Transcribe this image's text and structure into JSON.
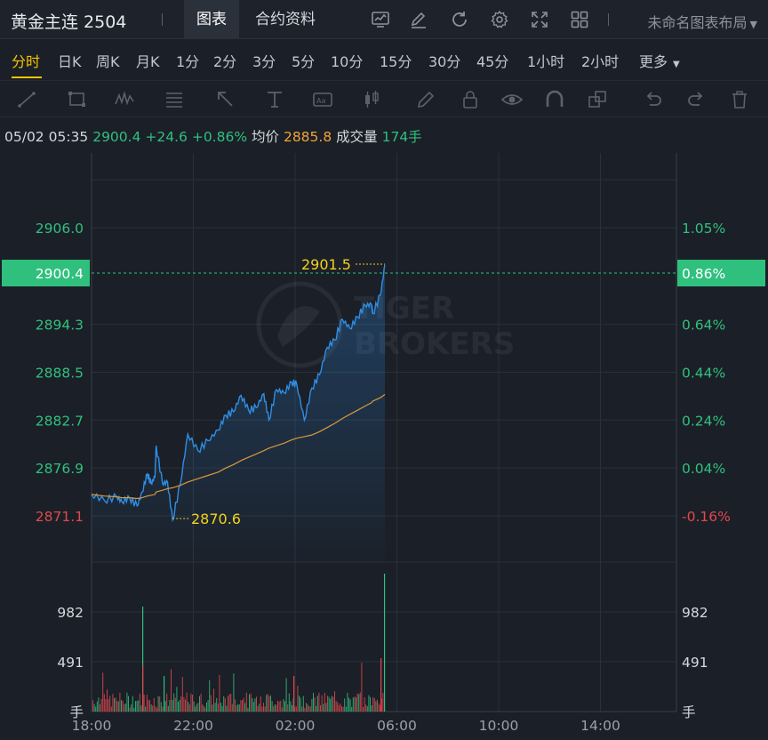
{
  "header": {
    "symbol": "黄金主连 2504",
    "tabs": [
      "图表",
      "合约资料"
    ],
    "layout_name": "未命名图表布局"
  },
  "intervals": [
    "分时",
    "日K",
    "周K",
    "月K",
    "1分",
    "2分",
    "3分",
    "5分",
    "10分",
    "15分",
    "30分",
    "45分",
    "1小时",
    "2小时",
    "更多"
  ],
  "active_interval": "分时",
  "info": {
    "datetime": "05/02 05:35",
    "price": "2900.4",
    "change": "+24.6",
    "change_pct": "+0.86%",
    "avg_label": "均价",
    "avg_price": "2885.8",
    "volume_label": "成交量",
    "volume": "174手"
  },
  "colors": {
    "up": "#2fc07e",
    "down": "#e0494f",
    "avg": "#d99a3a",
    "price_line": "#2f8ee6",
    "marker": "#f2d21b"
  },
  "watermark": [
    "TIGER",
    "BROKERS"
  ],
  "chart_data": {
    "type": "line",
    "price_axis": {
      "ticks": [
        "2906.0",
        "2894.3",
        "2888.5",
        "2882.7",
        "2876.9",
        "2871.1"
      ],
      "values": [
        2906.0,
        2894.3,
        2888.5,
        2882.7,
        2876.9,
        2871.1
      ],
      "pct_ticks": [
        "1.05%",
        "0.64%",
        "0.44%",
        "0.24%",
        "0.04%",
        "-0.16%"
      ]
    },
    "current_price_label": "2900.4",
    "current_pct_label": "0.86%",
    "high_marker": "2901.5",
    "low_marker": "2870.6",
    "volume_axis": {
      "ticks": [
        "982",
        "491"
      ],
      "unit": "手"
    },
    "time_ticks": [
      "18:00",
      "22:00",
      "02:00",
      "06:00",
      "10:00",
      "14:00"
    ],
    "x_hours_from_1800": [
      0,
      0.5,
      1,
      1.2,
      1.5,
      1.8,
      2.0,
      2.2,
      2.35,
      2.5,
      2.55,
      2.8,
      3.0,
      3.2,
      3.5,
      3.8,
      4.2,
      4.6,
      5.0,
      5.3,
      5.6,
      5.9,
      6.2,
      6.5,
      6.8,
      7.0,
      7.3,
      7.6,
      7.9,
      8.1,
      8.4,
      8.7,
      9.0,
      9.3,
      9.6,
      9.9,
      10.2,
      10.5,
      10.8,
      11.05,
      11.1,
      11.4,
      11.58
    ],
    "price_series": [
      2873.7,
      2873.0,
      2873.4,
      2872.8,
      2873.3,
      2872.3,
      2874.0,
      2876.2,
      2875.0,
      2875.8,
      2879.6,
      2875.0,
      2875.2,
      2870.6,
      2874.9,
      2881.0,
      2879.0,
      2880.2,
      2881.5,
      2883.3,
      2883.7,
      2885.7,
      2883.9,
      2884.2,
      2885.9,
      2882.7,
      2886.4,
      2886.0,
      2887.3,
      2887.0,
      2882.7,
      2886.6,
      2888.2,
      2891.5,
      2892.4,
      2894.9,
      2893.8,
      2895.2,
      2896.6,
      2896.7,
      2895.6,
      2897.8,
      2901.5
    ],
    "avg_series": [
      2873.7,
      2873.5,
      2873.4,
      2873.3,
      2873.3,
      2873.2,
      2873.3,
      2873.5,
      2873.6,
      2873.7,
      2874.0,
      2874.2,
      2874.4,
      2874.5,
      2874.8,
      2875.2,
      2875.6,
      2876.0,
      2876.4,
      2876.9,
      2877.3,
      2877.8,
      2878.2,
      2878.6,
      2879.0,
      2879.3,
      2879.6,
      2879.9,
      2880.3,
      2880.5,
      2880.7,
      2880.9,
      2881.3,
      2881.8,
      2882.3,
      2882.9,
      2883.4,
      2883.9,
      2884.4,
      2884.8,
      2885.0,
      2885.4,
      2885.8
    ]
  }
}
